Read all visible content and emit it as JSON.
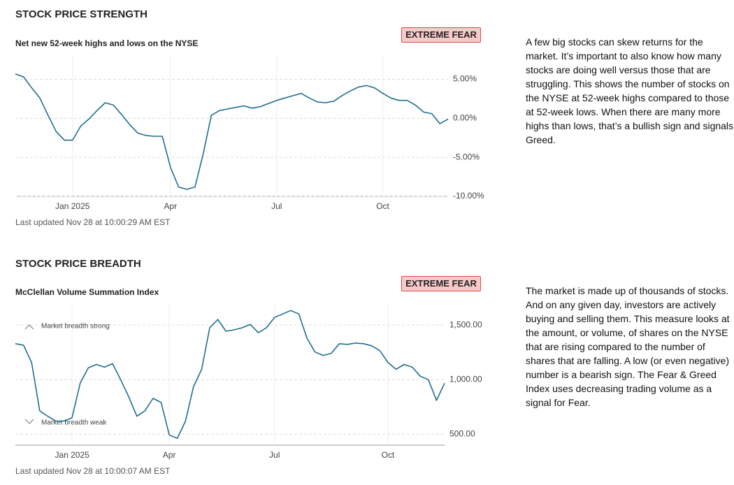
{
  "chart_data": [
    {
      "type": "line",
      "heading": "STOCK PRICE STRENGTH",
      "title": "Net new 52-week highs and lows on the NYSE",
      "badge": "EXTREME FEAR",
      "description": "A few big stocks can skew returns for the market. It’s important to also know how many stocks are doing well versus those that are struggling. This shows the number of stocks on the NYSE at 52-week highs compared to those at 52-week lows. When there are many more highs than lows, that’s a bullish sign and signals Greed.",
      "updated": "Last updated Nov 28 at 10:00:29 AM EST",
      "categories": [
        null,
        null,
        null,
        null,
        null,
        null,
        null,
        "Jan 2025",
        null,
        null,
        null,
        null,
        null,
        null,
        null,
        null,
        null,
        null,
        null,
        "Apr",
        null,
        null,
        null,
        null,
        null,
        null,
        null,
        null,
        null,
        null,
        null,
        null,
        "Jul",
        null,
        null,
        null,
        null,
        null,
        null,
        null,
        null,
        null,
        null,
        null,
        null,
        "Oct",
        null,
        null,
        null,
        null,
        null,
        null,
        null,
        null
      ],
      "values": [
        5.7,
        5.3,
        3.9,
        2.6,
        0.4,
        -1.7,
        -2.8,
        -2.8,
        -1.0,
        -0.1,
        1.0,
        2.0,
        1.7,
        0.5,
        -0.8,
        -1.9,
        -2.2,
        -2.3,
        -2.3,
        -6.3,
        -8.8,
        -9.1,
        -8.8,
        -4.6,
        0.4,
        1.0,
        1.2,
        1.4,
        1.6,
        1.3,
        1.5,
        1.9,
        2.3,
        2.6,
        2.9,
        3.2,
        2.6,
        2.1,
        2.0,
        2.2,
        2.9,
        3.5,
        4.0,
        4.2,
        3.9,
        3.2,
        2.6,
        2.3,
        2.3,
        1.7,
        0.8,
        0.6,
        -0.7,
        -0.1
      ],
      "color": "#1f6f8f",
      "ylim": [
        -10,
        8
      ],
      "yticks": [
        {
          "value": -10,
          "label": "-10.00%"
        },
        {
          "value": -5,
          "label": "-5.00%"
        },
        {
          "value": 0,
          "label": "0.00%"
        },
        {
          "value": 5,
          "label": "5.00%"
        }
      ],
      "grid": true
    },
    {
      "type": "line",
      "heading": "STOCK PRICE BREADTH",
      "title": "McClellan Volume Summation Index",
      "badge": "EXTREME FEAR",
      "description": "The market is made up of thousands of stocks. And on any given day, investors are actively buying and selling them. This measure looks at the amount, or volume, of shares on the NYSE that are rising compared to the number of shares that are falling. A low (or even negative) number is a bearish sign. The Fear & Greed Index uses decreasing trading volume as a signal for Fear.",
      "updated": "Last updated Nov 28 at 10:00:07 AM EST",
      "annotations": [
        "Market breadth strong",
        "Market breadth weak"
      ],
      "categories": [
        null,
        null,
        null,
        null,
        null,
        null,
        null,
        "Jan 2025",
        null,
        null,
        null,
        null,
        null,
        null,
        null,
        null,
        null,
        null,
        null,
        "Apr",
        null,
        null,
        null,
        null,
        null,
        null,
        null,
        null,
        null,
        null,
        null,
        null,
        "Jul",
        null,
        null,
        null,
        null,
        null,
        null,
        null,
        null,
        null,
        null,
        null,
        null,
        null,
        "Oct",
        null,
        null,
        null,
        null,
        null,
        null,
        null
      ],
      "values": [
        1329,
        1316,
        1158,
        715,
        665,
        620,
        620,
        652,
        968,
        1108,
        1139,
        1114,
        1146,
        1000,
        842,
        665,
        715,
        829,
        791,
        494,
        462,
        620,
        937,
        1095,
        1475,
        1551,
        1443,
        1456,
        1475,
        1506,
        1430,
        1475,
        1570,
        1601,
        1633,
        1601,
        1380,
        1253,
        1222,
        1241,
        1329,
        1323,
        1335,
        1329,
        1310,
        1266,
        1158,
        1095,
        1139,
        1114,
        1032,
        1000,
        810,
        968
      ],
      "color": "#1f6f8f",
      "ylim": [
        400,
        1680
      ],
      "yticks": [
        {
          "value": 500,
          "label": "500.00"
        },
        {
          "value": 1000,
          "label": "1,000.00"
        },
        {
          "value": 1500,
          "label": "1,500.00"
        }
      ],
      "grid": true
    }
  ]
}
